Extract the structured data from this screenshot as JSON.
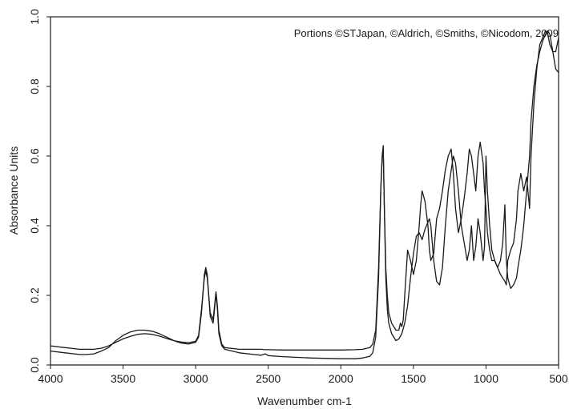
{
  "chart_data": {
    "type": "line",
    "title": "",
    "xlabel": "Wavenumber cm-1",
    "ylabel": "Absorbance Units",
    "xlim": [
      4000,
      500
    ],
    "ylim": [
      0.0,
      1.0
    ],
    "x_reversed": true,
    "grid": false,
    "legend": "none",
    "annotation": "Portions ©STJapan, ©Aldrich, ©Smiths, ©Nicodom, 2009",
    "x_ticks": [
      4000,
      3500,
      3000,
      2500,
      2000,
      1500,
      1000,
      500
    ],
    "x_tick_labels": [
      "4000",
      "3500",
      "3000",
      "2500",
      "2000",
      "1500",
      "1000",
      "500"
    ],
    "y_ticks": [
      0.0,
      0.2,
      0.4,
      0.6,
      0.8,
      1.0
    ],
    "y_tick_labels": [
      "0.0",
      "0.2",
      "0.4",
      "0.6",
      "0.8",
      "1.0"
    ],
    "line_color": "#1a1a1a",
    "series": [
      {
        "x": [
          4000,
          3900,
          3800,
          3750,
          3700,
          3650,
          3600,
          3550,
          3500,
          3450,
          3400,
          3350,
          3300,
          3250,
          3200,
          3150,
          3100,
          3050,
          3000,
          2980,
          2960,
          2940,
          2930,
          2920,
          2900,
          2880,
          2870,
          2860,
          2850,
          2840,
          2820,
          2800,
          2700,
          2600,
          2550,
          2520,
          2500,
          2400,
          2200,
          2000,
          1900,
          1850,
          1800,
          1780,
          1760,
          1740,
          1725,
          1715,
          1708,
          1700,
          1690,
          1680,
          1670,
          1650,
          1620,
          1600,
          1580,
          1560,
          1540,
          1520,
          1500,
          1480,
          1460,
          1450,
          1440,
          1420,
          1400,
          1390,
          1380,
          1360,
          1340,
          1320,
          1300,
          1280,
          1260,
          1240,
          1225,
          1210,
          1190,
          1170,
          1150,
          1130,
          1115,
          1100,
          1085,
          1070,
          1055,
          1040,
          1020,
          1010,
          1000,
          990,
          975,
          960,
          940,
          920,
          900,
          885,
          870,
          860,
          850,
          830,
          810,
          790,
          780,
          760,
          740,
          720,
          700,
          690,
          670,
          650,
          630,
          610,
          590,
          575,
          560,
          540,
          520,
          500
        ],
        "y": [
          0.04,
          0.035,
          0.03,
          0.03,
          0.032,
          0.04,
          0.05,
          0.07,
          0.085,
          0.095,
          0.1,
          0.1,
          0.097,
          0.09,
          0.08,
          0.07,
          0.063,
          0.06,
          0.065,
          0.08,
          0.15,
          0.26,
          0.28,
          0.26,
          0.14,
          0.12,
          0.16,
          0.205,
          0.16,
          0.09,
          0.055,
          0.045,
          0.035,
          0.03,
          0.028,
          0.032,
          0.027,
          0.024,
          0.02,
          0.018,
          0.018,
          0.02,
          0.025,
          0.035,
          0.08,
          0.25,
          0.5,
          0.6,
          0.63,
          0.45,
          0.25,
          0.16,
          0.12,
          0.09,
          0.07,
          0.075,
          0.09,
          0.12,
          0.17,
          0.25,
          0.32,
          0.37,
          0.38,
          0.37,
          0.36,
          0.39,
          0.41,
          0.42,
          0.4,
          0.3,
          0.24,
          0.23,
          0.28,
          0.4,
          0.5,
          0.56,
          0.6,
          0.58,
          0.5,
          0.4,
          0.35,
          0.3,
          0.33,
          0.4,
          0.3,
          0.34,
          0.42,
          0.38,
          0.3,
          0.34,
          0.6,
          0.5,
          0.4,
          0.33,
          0.3,
          0.28,
          0.3,
          0.35,
          0.46,
          0.3,
          0.25,
          0.22,
          0.23,
          0.25,
          0.28,
          0.33,
          0.4,
          0.5,
          0.6,
          0.7,
          0.8,
          0.86,
          0.9,
          0.93,
          0.95,
          0.96,
          0.95,
          0.9,
          0.85,
          0.84
        ]
      },
      {
        "x": [
          4000,
          3900,
          3800,
          3750,
          3700,
          3650,
          3600,
          3550,
          3500,
          3450,
          3400,
          3350,
          3300,
          3250,
          3200,
          3150,
          3100,
          3050,
          3000,
          2980,
          2960,
          2940,
          2930,
          2920,
          2900,
          2880,
          2870,
          2860,
          2850,
          2840,
          2820,
          2800,
          2700,
          2600,
          2550,
          2520,
          2500,
          2400,
          2200,
          2000,
          1900,
          1850,
          1800,
          1780,
          1760,
          1740,
          1725,
          1715,
          1708,
          1700,
          1690,
          1680,
          1670,
          1650,
          1620,
          1600,
          1590,
          1580,
          1570,
          1560,
          1540,
          1520,
          1500,
          1480,
          1460,
          1450,
          1440,
          1420,
          1400,
          1390,
          1380,
          1360,
          1340,
          1320,
          1300,
          1280,
          1260,
          1240,
          1225,
          1210,
          1190,
          1170,
          1150,
          1130,
          1115,
          1100,
          1085,
          1070,
          1055,
          1040,
          1020,
          1010,
          1000,
          990,
          975,
          960,
          940,
          920,
          900,
          885,
          870,
          860,
          850,
          830,
          810,
          790,
          780,
          760,
          740,
          720,
          700,
          690,
          670,
          650,
          630,
          610,
          590,
          575,
          560,
          540,
          520,
          500
        ],
        "y": [
          0.055,
          0.05,
          0.045,
          0.045,
          0.045,
          0.048,
          0.055,
          0.065,
          0.075,
          0.082,
          0.088,
          0.09,
          0.088,
          0.083,
          0.076,
          0.07,
          0.066,
          0.064,
          0.068,
          0.085,
          0.16,
          0.25,
          0.27,
          0.25,
          0.15,
          0.13,
          0.17,
          0.21,
          0.17,
          0.1,
          0.06,
          0.05,
          0.045,
          0.045,
          0.045,
          0.044,
          0.044,
          0.043,
          0.043,
          0.043,
          0.044,
          0.045,
          0.05,
          0.06,
          0.1,
          0.28,
          0.5,
          0.6,
          0.62,
          0.45,
          0.28,
          0.2,
          0.15,
          0.12,
          0.1,
          0.1,
          0.12,
          0.11,
          0.13,
          0.2,
          0.33,
          0.3,
          0.26,
          0.3,
          0.4,
          0.46,
          0.5,
          0.47,
          0.4,
          0.33,
          0.3,
          0.32,
          0.42,
          0.45,
          0.5,
          0.56,
          0.6,
          0.62,
          0.55,
          0.45,
          0.38,
          0.42,
          0.48,
          0.55,
          0.62,
          0.6,
          0.55,
          0.5,
          0.6,
          0.64,
          0.58,
          0.5,
          0.45,
          0.38,
          0.33,
          0.3,
          0.3,
          0.28,
          0.26,
          0.25,
          0.24,
          0.23,
          0.3,
          0.33,
          0.35,
          0.42,
          0.5,
          0.55,
          0.5,
          0.54,
          0.45,
          0.6,
          0.75,
          0.85,
          0.92,
          0.94,
          0.96,
          0.95,
          0.92,
          0.9,
          0.9,
          0.94
        ]
      }
    ]
  }
}
